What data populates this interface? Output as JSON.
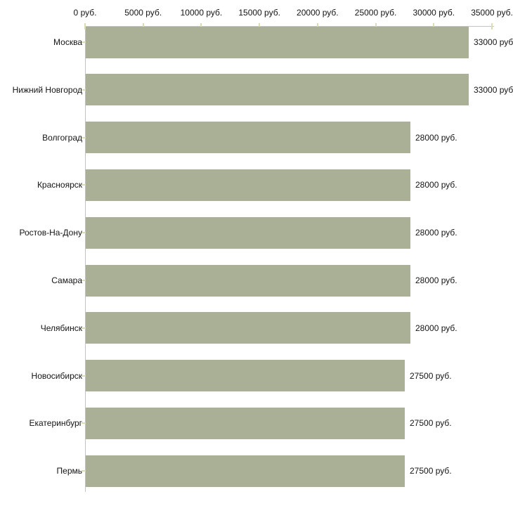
{
  "chart_data": {
    "type": "bar",
    "orientation": "horizontal",
    "title": "",
    "xlabel": "",
    "ylabel": "",
    "categories": [
      "Москва",
      "Нижний Новгород",
      "Волгоград",
      "Красноярск",
      "Ростов-На-Дону",
      "Самара",
      "Челябинск",
      "Новосибирск",
      "Екатеринбург",
      "Пермь"
    ],
    "values": [
      33000,
      33000,
      28000,
      28000,
      28000,
      28000,
      28000,
      27500,
      27500,
      27500
    ],
    "value_labels": [
      "33000 руб.",
      "33000 руб.",
      "28000 руб.",
      "28000 руб.",
      "28000 руб.",
      "28000 руб.",
      "28000 руб.",
      "27500 руб.",
      "27500 руб.",
      "27500 руб."
    ],
    "x_ticks": [
      0,
      5000,
      10000,
      15000,
      20000,
      25000,
      30000,
      35000
    ],
    "x_tick_labels": [
      "0 руб.",
      "5000 руб.",
      "10000 руб.",
      "15000 руб.",
      "20000 руб.",
      "25000 руб.",
      "30000 руб.",
      "35000 руб."
    ],
    "xlim": [
      0,
      35000
    ],
    "axis_position": "top",
    "grid": false,
    "legend": null,
    "colors": {
      "bar": "#a9b095",
      "axis_line": "#c3c3c3",
      "tick_mark": "#d9dcb5",
      "text": "#141414",
      "background": "#ffffff"
    }
  }
}
